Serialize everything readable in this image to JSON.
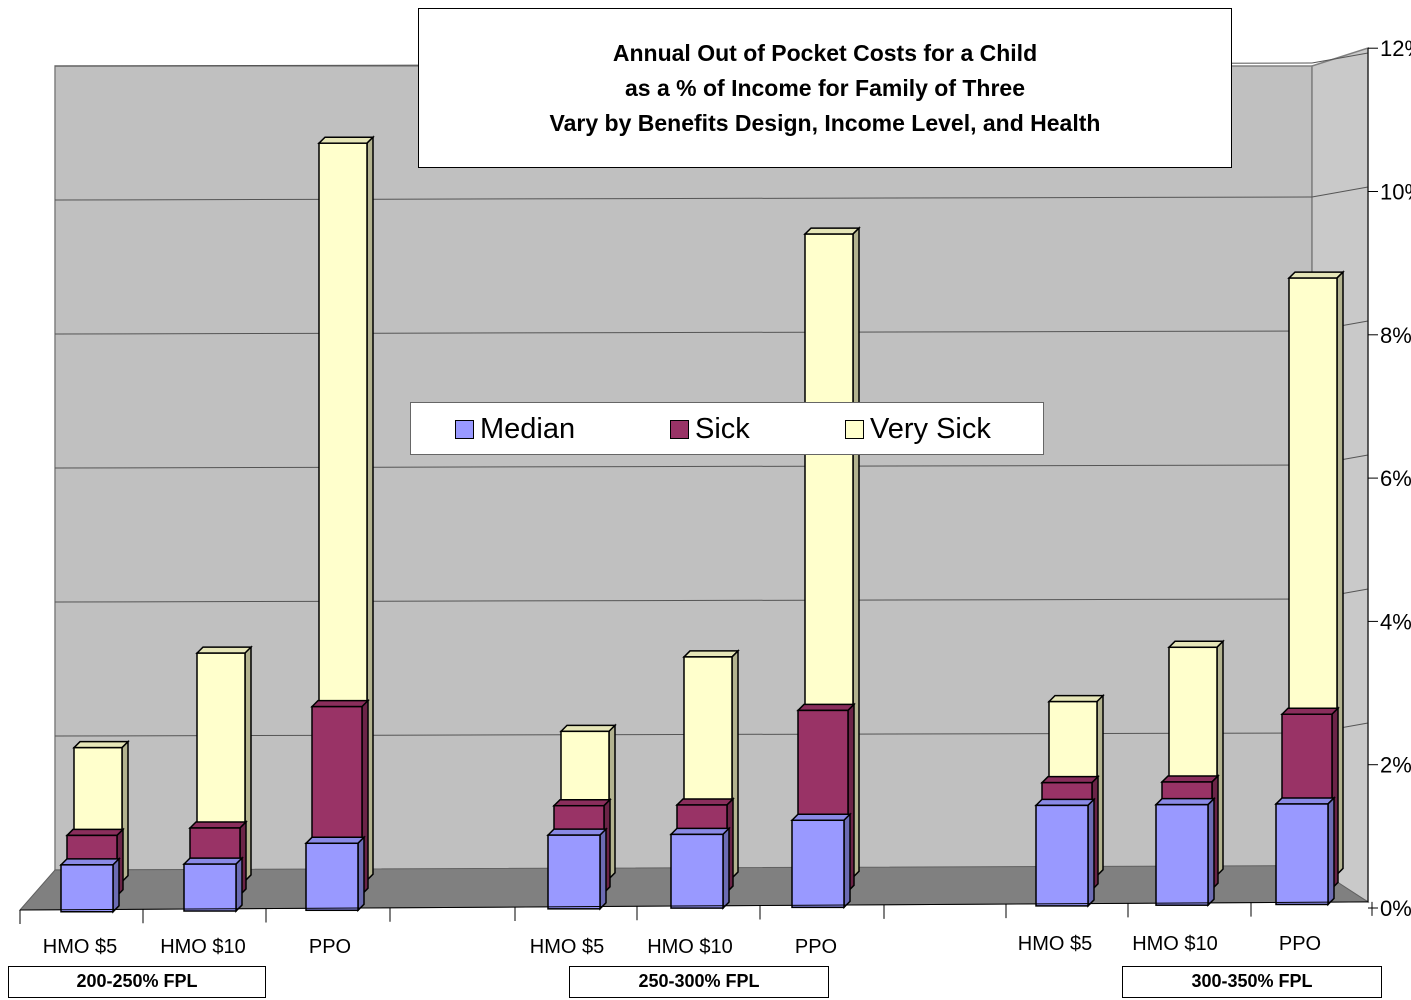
{
  "chart_data": {
    "type": "bar",
    "title_lines": [
      "Annual Out of Pocket Costs for a Child",
      "as a % of Income for Family of Three",
      "Vary by Benefits Design, Income Level, and Health"
    ],
    "categories": [
      "HMO $5",
      "HMO $10",
      "PPO",
      "HMO $5",
      "HMO $10",
      "PPO",
      "HMO $5",
      "HMO $10",
      "PPO"
    ],
    "groups": [
      {
        "label": "200-250% FPL",
        "categories": [
          "HMO $5",
          "HMO $10",
          "PPO"
        ]
      },
      {
        "label": "250-300% FPL",
        "categories": [
          "HMO $5",
          "HMO $10",
          "PPO"
        ]
      },
      {
        "label": "300-350% FPL",
        "categories": [
          "HMO $5",
          "HMO $10",
          "PPO"
        ]
      }
    ],
    "series": [
      {
        "name": "Median",
        "color": "#9999ff",
        "values": [
          0.7,
          0.7,
          1.0,
          1.1,
          1.1,
          1.3,
          1.5,
          1.5,
          1.5
        ]
      },
      {
        "name": "Sick",
        "color": "#993366",
        "values": [
          0.9,
          1.0,
          2.8,
          1.3,
          1.3,
          2.7,
          1.6,
          1.6,
          2.6
        ]
      },
      {
        "name": "Very Sick",
        "color": "#ffffcc",
        "values": [
          2.0,
          3.4,
          11.0,
          2.2,
          3.3,
          9.6,
          2.6,
          3.4,
          8.9
        ]
      }
    ],
    "y_tick_labels": [
      "0%",
      "2%",
      "4%",
      "6%",
      "8%",
      "10%",
      "12%"
    ],
    "ylim": [
      0,
      12
    ],
    "grid": true,
    "legend_position": "center"
  }
}
